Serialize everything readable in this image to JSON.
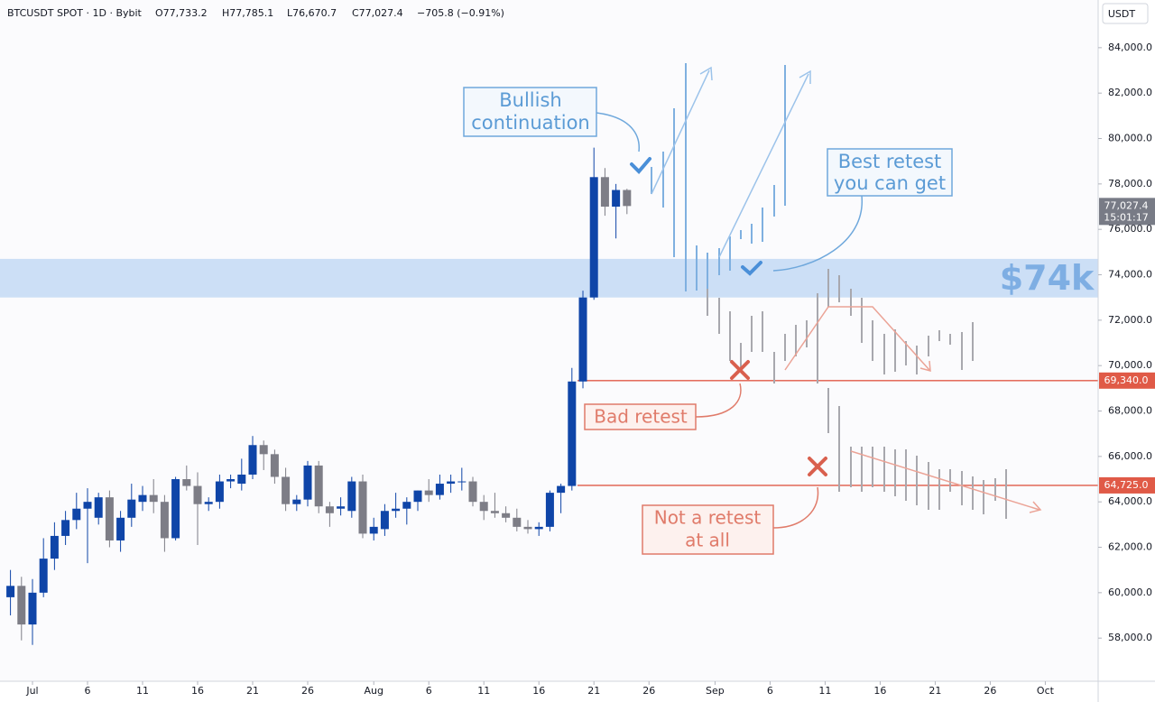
{
  "chart_data": {
    "type": "candlestick",
    "header": {
      "symbol": "BTCUSDT SPOT · 1D · Bybit",
      "open": "O77,733.2",
      "high": "H77,785.1",
      "low": "L76,670.7",
      "close": "C77,027.4",
      "change": "−705.8 (−0.91%)"
    },
    "currency": "USDT",
    "up_color": "#0f45a8",
    "down_color": "#7d7d86",
    "x": [
      -2,
      -1,
      0,
      1,
      2,
      3,
      4,
      5,
      6,
      7,
      8,
      9,
      10,
      11,
      12,
      13,
      14,
      15,
      16,
      17,
      18,
      19,
      20,
      21,
      22,
      23,
      24,
      25,
      26,
      27,
      28,
      29,
      30,
      31,
      32,
      33,
      34,
      35,
      36,
      37,
      38,
      39,
      40,
      41,
      42,
      43,
      44,
      45,
      46,
      47,
      48,
      49,
      50,
      51,
      52,
      53,
      54
    ],
    "open": [
      59800,
      60300,
      58600,
      60000,
      61500,
      62500,
      63200,
      63700,
      63300,
      64200,
      62300,
      63300,
      64000,
      64300,
      64000,
      62400,
      65000,
      64700,
      63900,
      64000,
      64900,
      64800,
      65200,
      66500,
      66100,
      65100,
      63900,
      64100,
      65600,
      63800,
      63700,
      63600,
      64900,
      62600,
      62800,
      63600,
      63700,
      64000,
      64500,
      64300,
      64800,
      64900,
      64900,
      64000,
      63600,
      63500,
      63300,
      62900,
      62800,
      62900,
      64400,
      64700,
      69300,
      73000,
      78300,
      77000,
      77733.2
    ],
    "high": [
      61000,
      60700,
      60600,
      62400,
      63100,
      63600,
      64400,
      64600,
      64400,
      64500,
      63600,
      64800,
      64700,
      65000,
      64300,
      65100,
      65600,
      65300,
      64200,
      65200,
      65200,
      65900,
      66900,
      66700,
      66300,
      65500,
      64300,
      65800,
      65800,
      64000,
      64200,
      65100,
      65200,
      63300,
      63900,
      64400,
      64200,
      64500,
      65000,
      65200,
      65200,
      65500,
      65100,
      64300,
      64400,
      63800,
      63700,
      63200,
      63100,
      64500,
      64800,
      69900,
      73300,
      79600,
      78700,
      78000,
      77785.1
    ],
    "low": [
      59000,
      57900,
      57700,
      59800,
      61000,
      62100,
      62800,
      61300,
      63000,
      62000,
      61800,
      62900,
      63600,
      63500,
      61800,
      62300,
      64500,
      62100,
      63600,
      63700,
      64600,
      64500,
      65000,
      65400,
      64800,
      63600,
      63600,
      63800,
      63500,
      62900,
      63400,
      63300,
      62400,
      62300,
      62500,
      63300,
      63000,
      63600,
      64000,
      64100,
      64400,
      64500,
      63800,
      63200,
      63300,
      63100,
      62700,
      62600,
      62500,
      62700,
      63500,
      64500,
      69000,
      72900,
      76600,
      75600,
      76670.7
    ],
    "close": [
      60300,
      58600,
      60000,
      61500,
      62500,
      63200,
      63700,
      64000,
      64200,
      62300,
      63300,
      64100,
      64300,
      64000,
      62400,
      65000,
      64700,
      63900,
      64000,
      64900,
      65000,
      65200,
      66500,
      66100,
      65100,
      63900,
      64100,
      65600,
      63800,
      63500,
      63800,
      64900,
      62600,
      62900,
      63600,
      63700,
      64000,
      64500,
      64300,
      64800,
      64900,
      64900,
      64000,
      63600,
      63500,
      63300,
      62900,
      62800,
      62900,
      64400,
      64700,
      69300,
      73000,
      78300,
      77000,
      77733.2,
      77027.4
    ],
    "xlim": [
      -2.95,
      96.8
    ],
    "ylim": [
      56100,
      86100
    ],
    "xticks": [
      {
        "value": 0,
        "label": "Jul"
      },
      {
        "value": 5,
        "label": "6"
      },
      {
        "value": 10,
        "label": "11"
      },
      {
        "value": 15,
        "label": "16"
      },
      {
        "value": 20,
        "label": "21"
      },
      {
        "value": 25,
        "label": "26"
      },
      {
        "value": 31,
        "label": "Aug"
      },
      {
        "value": 36,
        "label": "6"
      },
      {
        "value": 41,
        "label": "11"
      },
      {
        "value": 46,
        "label": "16"
      },
      {
        "value": 51,
        "label": "21"
      },
      {
        "value": 56,
        "label": "26"
      },
      {
        "value": 62,
        "label": "Sep"
      },
      {
        "value": 67,
        "label": "6"
      },
      {
        "value": 72,
        "label": "11"
      },
      {
        "value": 77,
        "label": "16"
      },
      {
        "value": 82,
        "label": "21"
      },
      {
        "value": 87,
        "label": "26"
      },
      {
        "value": 92,
        "label": "Oct"
      }
    ],
    "yticks": [
      {
        "value": 58000,
        "label": "58,000.0"
      },
      {
        "value": 60000,
        "label": "60,000.0"
      },
      {
        "value": 62000,
        "label": "62,000.0"
      },
      {
        "value": 64000,
        "label": "64,000.0"
      },
      {
        "value": 66000,
        "label": "66,000.0"
      },
      {
        "value": 68000,
        "label": "68,000.0"
      },
      {
        "value": 70000,
        "label": "70,000.0"
      },
      {
        "value": 72000,
        "label": "72,000.0"
      },
      {
        "value": 74000,
        "label": "74,000.0"
      },
      {
        "value": 76000,
        "label": "76,000.0"
      },
      {
        "value": 78000,
        "label": "78,000.0"
      },
      {
        "value": 80000,
        "label": "80,000.0"
      },
      {
        "value": 82000,
        "label": "82,000.0"
      },
      {
        "value": 84000,
        "label": "84,000.0"
      }
    ],
    "zone": {
      "range": [
        73000,
        74700
      ],
      "label": "$74k",
      "color": "#c6dcf5"
    },
    "levels": [
      {
        "value": 69340,
        "label": "69,340.0",
        "color": "#e05a47"
      },
      {
        "value": 64725,
        "label": "64,725.0",
        "color": "#e05a47"
      }
    ],
    "last_price": {
      "value": 77027.4,
      "label": "77,027.4",
      "countdown": "15:01:17",
      "color": "#787b86"
    },
    "annotations": {
      "bullish": [
        "Bullish",
        "continuation"
      ],
      "best": [
        "Best retest",
        "you can get"
      ],
      "bad": "Bad retest",
      "not": [
        "Not a retest",
        "at all"
      ]
    }
  }
}
